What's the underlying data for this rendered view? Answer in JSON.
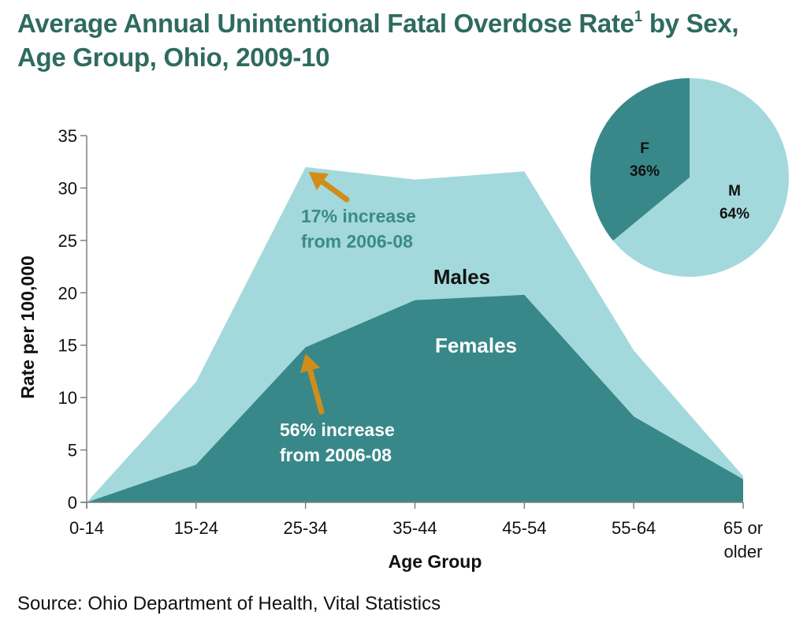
{
  "header": {
    "title_main": "Average Annual Unintentional Fatal Overdose Rate",
    "title_sup": "1",
    "title_tail": " by Sex,",
    "title_line2": "Age Group, Ohio, 2009-10"
  },
  "footer": {
    "source": "Source: Ohio Department of Health, Vital Statistics"
  },
  "colors": {
    "males": "#a3d9dc",
    "females": "#388889",
    "arrow": "#d18d1a",
    "annotation_text": "#3a8a8a",
    "axis": "#7f7f7f"
  },
  "chart_data": [
    {
      "type": "area",
      "categories": [
        [
          "0-14"
        ],
        [
          "15-24"
        ],
        [
          "25-34"
        ],
        [
          "35-44"
        ],
        [
          "45-54"
        ],
        [
          "55-64"
        ],
        [
          "65 or",
          "older"
        ]
      ],
      "series": [
        {
          "name": "Males",
          "values": [
            0,
            11.5,
            32,
            30.8,
            31.6,
            14.5,
            2.5
          ]
        },
        {
          "name": "Females",
          "values": [
            0,
            3.6,
            14.8,
            19.3,
            19.8,
            8.2,
            2.2
          ]
        }
      ],
      "xlabel": "Age Group",
      "ylabel": "Rate per 100,000",
      "ylim": [
        0,
        35
      ],
      "yticks": [
        "0",
        "5",
        "10",
        "15",
        "20",
        "25",
        "30",
        "35"
      ],
      "grid": false,
      "annotations": [
        {
          "lines": [
            "17% increase",
            "from 2006-08"
          ],
          "points_to": {
            "category": "25-34",
            "series": "Males"
          }
        },
        {
          "lines": [
            "56% increase",
            "from 2006-08"
          ],
          "points_to": {
            "category": "25-34",
            "series": "Females"
          }
        }
      ]
    },
    {
      "type": "pie",
      "slices": [
        {
          "label": "M",
          "value": 64,
          "value_label": "64%"
        },
        {
          "label": "F",
          "value": 36,
          "value_label": "36%"
        }
      ]
    }
  ]
}
